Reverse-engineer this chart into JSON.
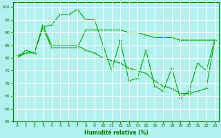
{
  "xlabel": "Humidité relative (%)",
  "background_color": "#b3f0f0",
  "grid_color": "#ffffff",
  "line_color": "#00aa00",
  "xlim": [
    -0.5,
    23.5
  ],
  "ylim": [
    55,
    102
  ],
  "yticks": [
    55,
    60,
    65,
    70,
    75,
    80,
    85,
    90,
    95,
    100
  ],
  "xticks": [
    0,
    1,
    2,
    3,
    4,
    5,
    6,
    7,
    8,
    9,
    10,
    11,
    12,
    13,
    14,
    15,
    16,
    17,
    18,
    19,
    20,
    21,
    22,
    23
  ],
  "line1_x": [
    0,
    1,
    2,
    3,
    4,
    5,
    6,
    7,
    8,
    9,
    10,
    11,
    12,
    13,
    14,
    15,
    16,
    17,
    18,
    19,
    20,
    21,
    22,
    23
  ],
  "line1_y": [
    80,
    82,
    82,
    92,
    93,
    97,
    97,
    99,
    95,
    95,
    85,
    75,
    87,
    71,
    72,
    83,
    69,
    67,
    76,
    64,
    67,
    78,
    75,
    87
  ],
  "line2_x": [
    0,
    1,
    2,
    3,
    4,
    5,
    6,
    7,
    8,
    9,
    10,
    11,
    12,
    13,
    14,
    15,
    16,
    17,
    18,
    19,
    20,
    21,
    22,
    23
  ],
  "line2_y": [
    80,
    83,
    82,
    92,
    84,
    84,
    84,
    84,
    91,
    91,
    91,
    91,
    91,
    90,
    90,
    89,
    88,
    88,
    88,
    87,
    87,
    87,
    87,
    87
  ],
  "line3_x": [
    0,
    1,
    2,
    3,
    4,
    5,
    6,
    7,
    8,
    9,
    10,
    11,
    12,
    13,
    14,
    15,
    16,
    17,
    18,
    19,
    20,
    21,
    22,
    23
  ],
  "line3_y": [
    81,
    82,
    82,
    93,
    85,
    85,
    85,
    85,
    83,
    82,
    80,
    79,
    78,
    76,
    75,
    74,
    71,
    69,
    68,
    66,
    66,
    67,
    68,
    87
  ]
}
